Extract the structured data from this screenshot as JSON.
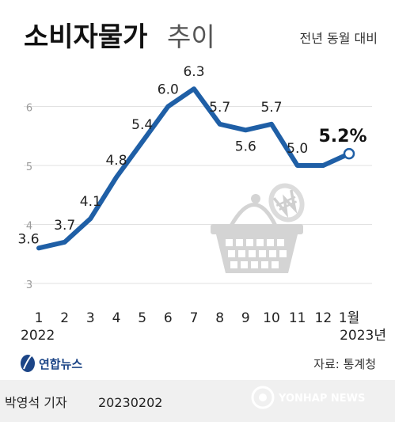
{
  "header": {
    "title_main": "소비자물가",
    "title_sub": "추이",
    "subtitle": "전년 동월 대비"
  },
  "chart_data": {
    "type": "line",
    "title": "소비자물가 추이",
    "subtitle": "전년 동월 대비",
    "categories": [
      "1",
      "2",
      "3",
      "4",
      "5",
      "6",
      "7",
      "8",
      "9",
      "10",
      "11",
      "12",
      "1월"
    ],
    "series": [
      {
        "values": [
          3.6,
          3.7,
          4.1,
          4.8,
          5.4,
          6.0,
          6.3,
          5.7,
          5.6,
          5.7,
          5.0,
          5.0,
          5.2
        ]
      }
    ],
    "data_labels": [
      "3.6",
      "3.7",
      "4.1",
      "4.8",
      "5.4",
      "6.0",
      "6.3",
      "5.7",
      "5.6",
      "5.7",
      "5.0",
      "",
      "5.2%"
    ],
    "yticks": [
      "3",
      "4",
      "5",
      "6"
    ],
    "ylim": [
      3,
      6.5
    ],
    "year_labels": {
      "start": "2022",
      "end": "2023년"
    },
    "grid": true,
    "line_color": "#1f5fa6",
    "grid_color": "#e2e2e2"
  },
  "source": {
    "text": "자료: 통계청"
  },
  "logo": {
    "text": "연합뉴스"
  },
  "footer": {
    "author": "박영석 기자",
    "date": "20230202",
    "brand": "YONHAP NEWS"
  },
  "colors": {
    "footer_bg": "#f0f0f0",
    "accent": "#1f5fa6",
    "basket": "#d4d4d4"
  }
}
